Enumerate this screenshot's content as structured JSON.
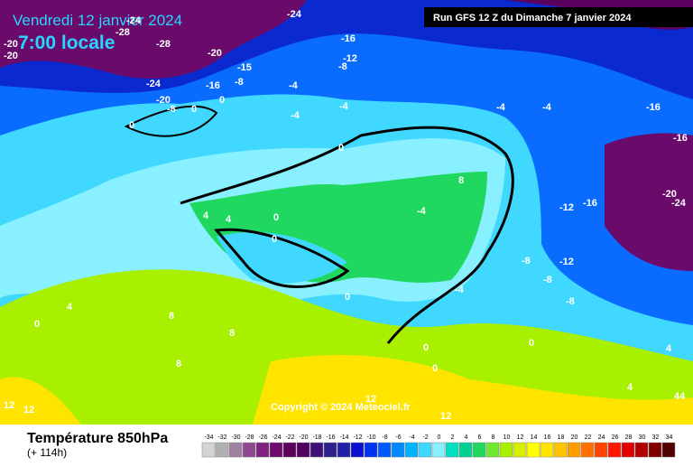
{
  "header": {
    "valid_date": "Vendredi 12 janvier 2024",
    "valid_time": "7:00 locale",
    "run": "Run GFS 12 Z du Dimanche 7 janvier 2024"
  },
  "copyright": "Copyright © 2024 Meteociel.fr",
  "footer": {
    "title": "Température 850hPa",
    "lead": "(+ 114h)"
  },
  "legend": {
    "ticks": [
      -34,
      -32,
      -30,
      -28,
      -26,
      -24,
      -22,
      -20,
      -18,
      -16,
      -14,
      -12,
      -10,
      -8,
      -6,
      -4,
      -2,
      0,
      2,
      4,
      6,
      8,
      10,
      12,
      14,
      16,
      18,
      20,
      22,
      24,
      26,
      28,
      30,
      32,
      34
    ],
    "colors": [
      "#d4d4d4",
      "#b0b0b0",
      "#a080a0",
      "#904890",
      "#802080",
      "#700a70",
      "#5c005c",
      "#500060",
      "#40107a",
      "#30208e",
      "#2020a8",
      "#0a10d0",
      "#0030f0",
      "#0058ff",
      "#0088ff",
      "#00b4ff",
      "#40d8ff",
      "#88f0ff",
      "#00e0c0",
      "#00d090",
      "#20d860",
      "#70e830",
      "#a8f000",
      "#d8f000",
      "#ffff00",
      "#ffe400",
      "#ffc400",
      "#ff9c00",
      "#ff7000",
      "#ff4400",
      "#ff1800",
      "#e00000",
      "#b00000",
      "#800000",
      "#500000"
    ]
  },
  "map_labels": [
    "-24",
    "-24",
    "-20",
    "-20",
    "-28",
    "-28",
    "-20",
    "-16",
    "-12",
    "-8",
    "-15",
    "-24",
    "-20",
    "-16",
    "-8",
    "-4",
    "-8",
    "0",
    "0",
    "-4",
    "-4",
    "0",
    "-4",
    "-4",
    "-16",
    "-16",
    "0",
    "-20",
    "-24",
    "-12",
    "-16",
    "4",
    "4",
    "0",
    "0",
    "-4",
    "8",
    "-12",
    "-8",
    "-8",
    "0",
    "4",
    "8",
    "8",
    "8",
    "0",
    "-4",
    "0",
    "0",
    "4",
    "12",
    "12",
    "12",
    "12",
    "44",
    "-8",
    "4",
    "0"
  ]
}
